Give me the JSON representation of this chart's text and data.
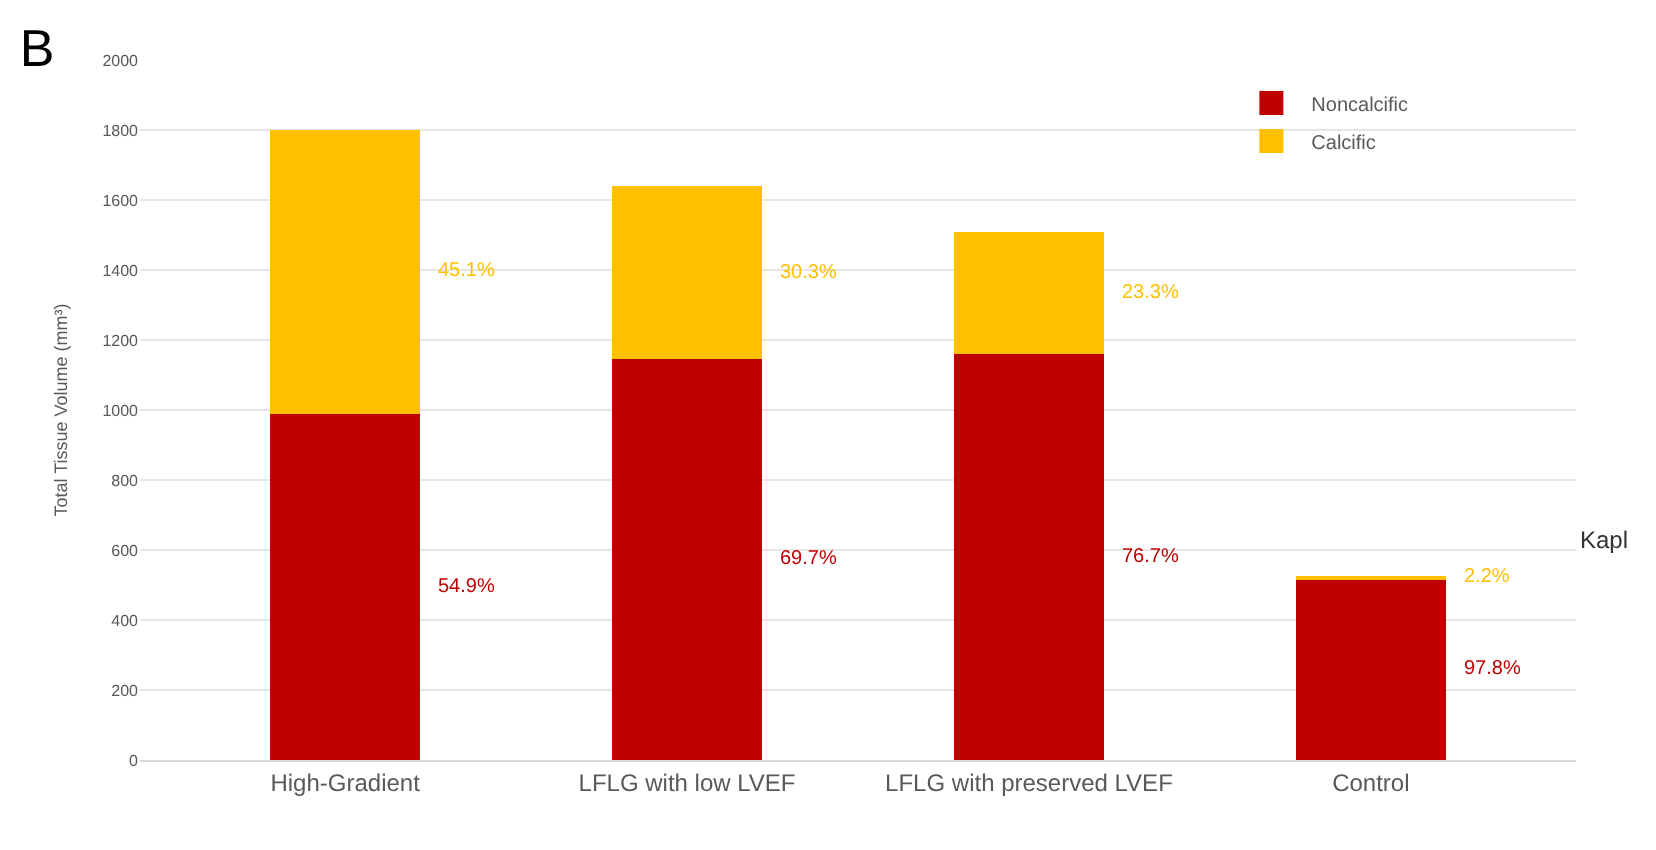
{
  "chart_data": {
    "type": "bar",
    "title": "B",
    "ylabel": "Total Tissue Volume (mm³)",
    "categories": [
      "High-Gradient",
      "LFLG with low LVEF",
      "LFLG with preserved LVEF",
      "Control"
    ],
    "stacked": true,
    "ylim": [
      0,
      2000
    ],
    "yticks": [
      0,
      200,
      400,
      600,
      800,
      1000,
      1200,
      1400,
      1600,
      1800,
      2000
    ],
    "grid": "y",
    "legend": "top right",
    "series": [
      {
        "name": "Noncalcific",
        "color": "#c00000",
        "values": [
          990,
          1145,
          1160,
          515
        ]
      },
      {
        "name": "Calcific",
        "color": "#ffc000",
        "values": [
          810,
          495,
          350,
          12
        ]
      }
    ],
    "annotations": [
      "54.9%",
      "45.1%",
      "69.7%",
      "30.3%",
      "76.7%",
      "23.3%",
      "97.8%",
      "2.2%",
      "Kapl"
    ]
  }
}
